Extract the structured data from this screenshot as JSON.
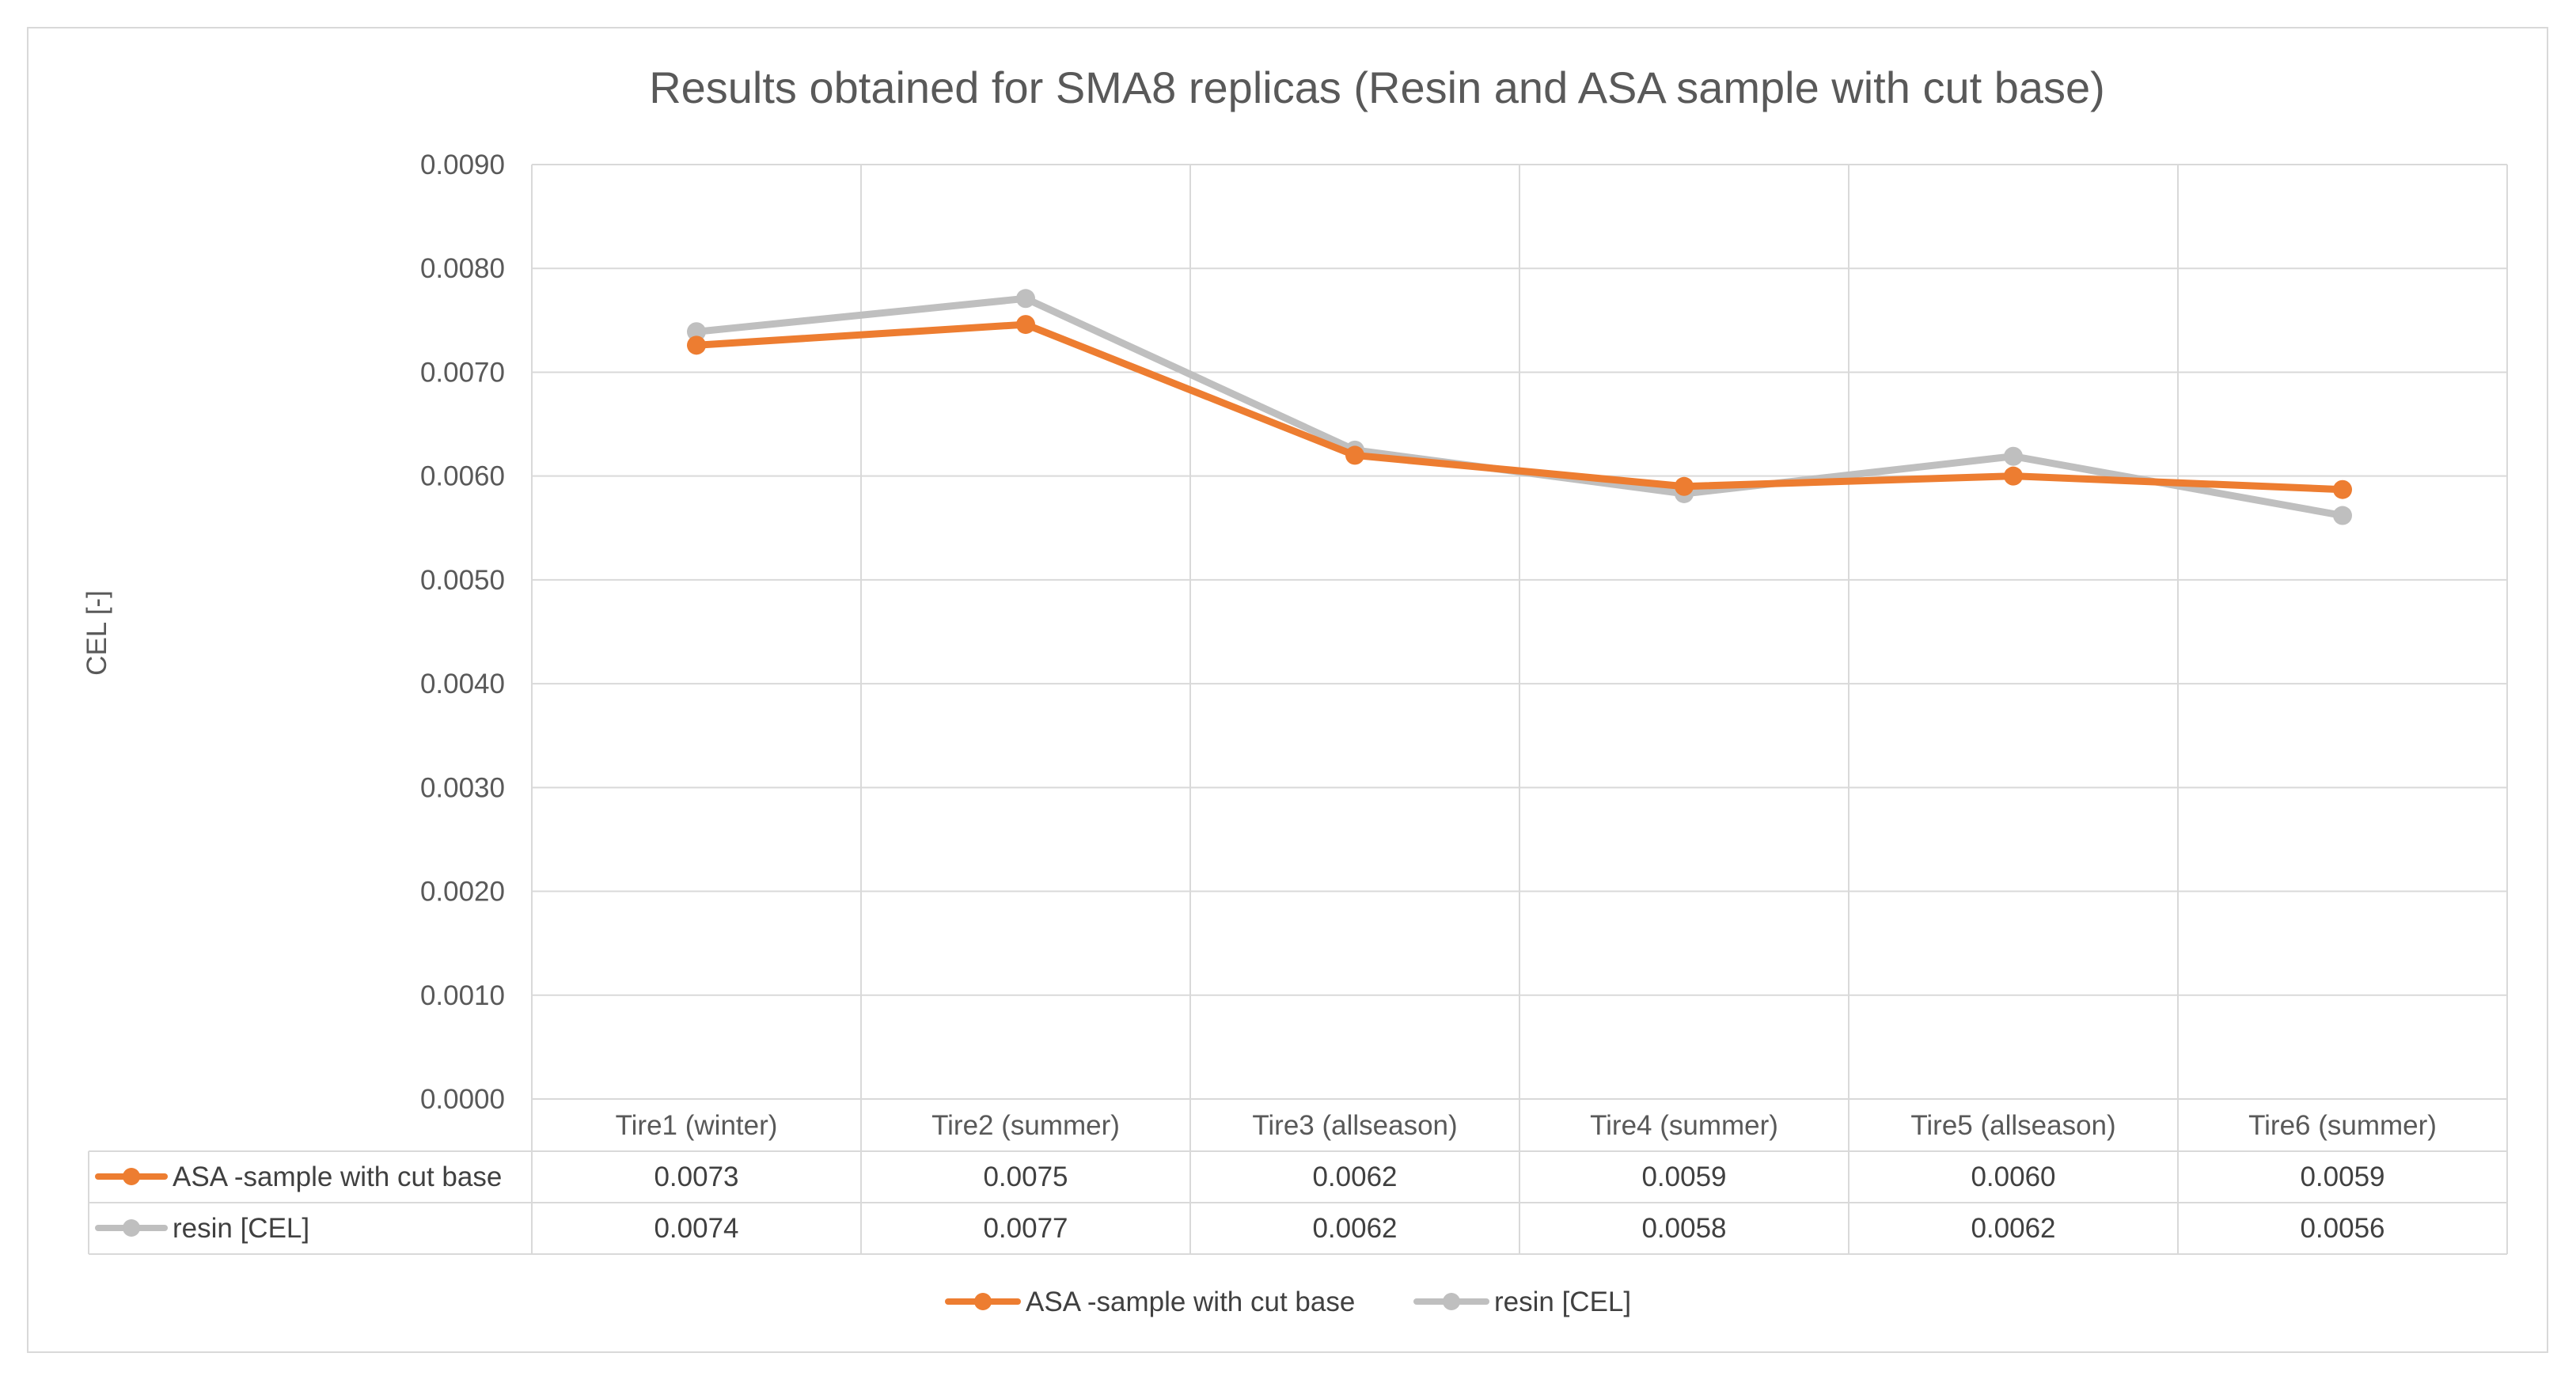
{
  "chart_data": {
    "type": "line",
    "title": "Results obtained for SMA8 replicas (Resin and ASA sample with cut base)",
    "xlabel": "",
    "ylabel": "CEL [-]",
    "ylim": [
      0,
      0.009
    ],
    "ytick_step": 0.001,
    "ytick_labels": [
      "0.0000",
      "0.0010",
      "0.0020",
      "0.0030",
      "0.0040",
      "0.0050",
      "0.0060",
      "0.0070",
      "0.0080",
      "0.0090"
    ],
    "grid": true,
    "legend": "bottom",
    "data_table": true,
    "categories": [
      "Tire1 (winter)",
      "Tire2 (summer)",
      "Tire3 (allseason)",
      "Tire4 (summer)",
      "Tire5 (allseason)",
      "Tire6 (summer)"
    ],
    "series": [
      {
        "name": "ASA -sample with cut base",
        "color": "#ed7d31",
        "values": [
          0.00726,
          0.00746,
          0.0062,
          0.0059,
          0.006,
          0.00587
        ],
        "table_labels": [
          "0.0073",
          "0.0075",
          "0.0062",
          "0.0059",
          "0.0060",
          "0.0059"
        ]
      },
      {
        "name": "resin [CEL]",
        "color": "#bfbfbf",
        "values": [
          0.00739,
          0.00771,
          0.00625,
          0.00583,
          0.00619,
          0.00562
        ],
        "table_labels": [
          "0.0074",
          "0.0077",
          "0.0062",
          "0.0058",
          "0.0062",
          "0.0056"
        ]
      }
    ]
  }
}
